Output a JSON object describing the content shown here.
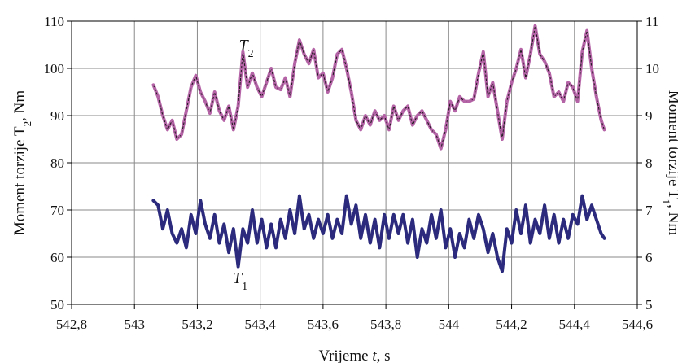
{
  "chart_data": {
    "type": "line",
    "xlabel_prefix": "Vrijeme ",
    "xlabel_var": "t",
    "xlabel_suffix": ", s",
    "ylabel_left": "Moment torzije T",
    "ylabel_left_sub": "2",
    "ylabel_left_suffix": ", Nm",
    "ylabel_right": "Moment torzije T",
    "ylabel_right_sub": "1",
    "ylabel_right_suffix": ", Nm",
    "xlim": [
      542.8,
      544.6
    ],
    "ylim_left": [
      50,
      110
    ],
    "ylim_right": [
      5,
      11
    ],
    "x_ticks": [
      "542,8",
      "543",
      "543,2",
      "543,4",
      "543,6",
      "543,8",
      "544",
      "544,2",
      "544,4",
      "544,6"
    ],
    "y_ticks_left": [
      "50",
      "60",
      "70",
      "80",
      "90",
      "100",
      "110"
    ],
    "y_ticks_right": [
      "5",
      "6",
      "7",
      "8",
      "9",
      "10",
      "11"
    ],
    "grid": true,
    "series": [
      {
        "name": "T",
        "name_sub": "2",
        "axis": "left",
        "color": "#b565a7",
        "trace_color": "#1a1a1a",
        "x": [
          543.06,
          543.075,
          543.09,
          543.105,
          543.12,
          543.135,
          543.15,
          543.165,
          543.18,
          543.195,
          543.21,
          543.225,
          543.24,
          543.255,
          543.27,
          543.285,
          543.3,
          543.315,
          543.33,
          543.345,
          543.36,
          543.375,
          543.39,
          543.405,
          543.42,
          543.435,
          543.45,
          543.465,
          543.48,
          543.495,
          543.51,
          543.525,
          543.54,
          543.555,
          543.57,
          543.585,
          543.6,
          543.615,
          543.63,
          543.645,
          543.66,
          543.675,
          543.69,
          543.705,
          543.72,
          543.735,
          543.75,
          543.765,
          543.78,
          543.795,
          543.81,
          543.825,
          543.84,
          543.855,
          543.87,
          543.885,
          543.9,
          543.915,
          543.93,
          543.945,
          543.96,
          543.975,
          543.99,
          544.005,
          544.02,
          544.035,
          544.05,
          544.065,
          544.08,
          544.095,
          544.11,
          544.125,
          544.14,
          544.155,
          544.17,
          544.185,
          544.2,
          544.215,
          544.23,
          544.245,
          544.26,
          544.275,
          544.29,
          544.305,
          544.32,
          544.335,
          544.35,
          544.365,
          544.38,
          544.395,
          544.41,
          544.425,
          544.44,
          544.455,
          544.47,
          544.485,
          544.495
        ],
        "values": [
          96.5,
          94,
          90,
          87,
          89,
          85,
          86,
          91,
          96,
          98.5,
          95,
          93,
          90.5,
          95,
          91,
          89,
          92,
          87,
          92,
          103.5,
          96,
          99,
          96,
          94,
          97,
          100,
          96,
          95.5,
          98,
          94,
          101,
          106,
          103,
          101,
          104,
          98,
          99,
          95,
          98,
          103,
          104,
          100,
          95,
          89,
          87,
          90,
          88,
          91,
          89,
          90,
          87,
          92,
          89,
          91,
          92,
          88,
          90,
          91,
          89,
          87,
          86,
          83,
          87,
          93,
          91,
          94,
          93,
          93,
          93.5,
          99,
          103.5,
          94,
          97,
          91,
          85,
          93,
          97,
          100,
          104,
          98,
          103,
          109,
          103,
          101.5,
          99,
          94,
          95,
          93,
          97,
          96,
          93,
          103.5,
          108,
          100,
          94,
          89,
          87
        ]
      },
      {
        "name": "T",
        "name_sub": "1",
        "axis": "right",
        "color": "#2b2a7c",
        "x": [
          543.06,
          543.075,
          543.09,
          543.105,
          543.12,
          543.135,
          543.15,
          543.165,
          543.18,
          543.195,
          543.21,
          543.225,
          543.24,
          543.255,
          543.27,
          543.285,
          543.3,
          543.315,
          543.33,
          543.345,
          543.36,
          543.375,
          543.39,
          543.405,
          543.42,
          543.435,
          543.45,
          543.465,
          543.48,
          543.495,
          543.51,
          543.525,
          543.54,
          543.555,
          543.57,
          543.585,
          543.6,
          543.615,
          543.63,
          543.645,
          543.66,
          543.675,
          543.69,
          543.705,
          543.72,
          543.735,
          543.75,
          543.765,
          543.78,
          543.795,
          543.81,
          543.825,
          543.84,
          543.855,
          543.87,
          543.885,
          543.9,
          543.915,
          543.93,
          543.945,
          543.96,
          543.975,
          543.99,
          544.005,
          544.02,
          544.035,
          544.05,
          544.065,
          544.08,
          544.095,
          544.11,
          544.125,
          544.14,
          544.155,
          544.17,
          544.185,
          544.2,
          544.215,
          544.23,
          544.245,
          544.26,
          544.275,
          544.29,
          544.305,
          544.32,
          544.335,
          544.35,
          544.365,
          544.38,
          544.395,
          544.41,
          544.425,
          544.44,
          544.455,
          544.47,
          544.485,
          544.495
        ],
        "values": [
          7.2,
          7.1,
          6.6,
          7.0,
          6.5,
          6.3,
          6.6,
          6.2,
          6.9,
          6.5,
          7.2,
          6.7,
          6.4,
          6.9,
          6.3,
          6.7,
          6.1,
          6.6,
          5.8,
          6.6,
          6.3,
          7.0,
          6.3,
          6.8,
          6.2,
          6.7,
          6.2,
          6.8,
          6.4,
          7.0,
          6.5,
          7.3,
          6.6,
          6.9,
          6.4,
          6.8,
          6.5,
          6.9,
          6.4,
          6.8,
          6.5,
          7.3,
          6.7,
          7.1,
          6.4,
          6.9,
          6.3,
          6.8,
          6.2,
          6.9,
          6.4,
          6.9,
          6.5,
          6.9,
          6.3,
          6.8,
          6.0,
          6.6,
          6.3,
          6.9,
          6.4,
          7.0,
          6.2,
          6.6,
          6.0,
          6.5,
          6.2,
          6.8,
          6.4,
          6.9,
          6.6,
          6.1,
          6.5,
          6.0,
          5.7,
          6.6,
          6.3,
          7.0,
          6.5,
          7.1,
          6.3,
          6.8,
          6.5,
          7.1,
          6.4,
          6.9,
          6.3,
          6.8,
          6.4,
          6.9,
          6.7,
          7.3,
          6.8,
          7.1,
          6.8,
          6.5,
          6.4
        ]
      }
    ]
  }
}
